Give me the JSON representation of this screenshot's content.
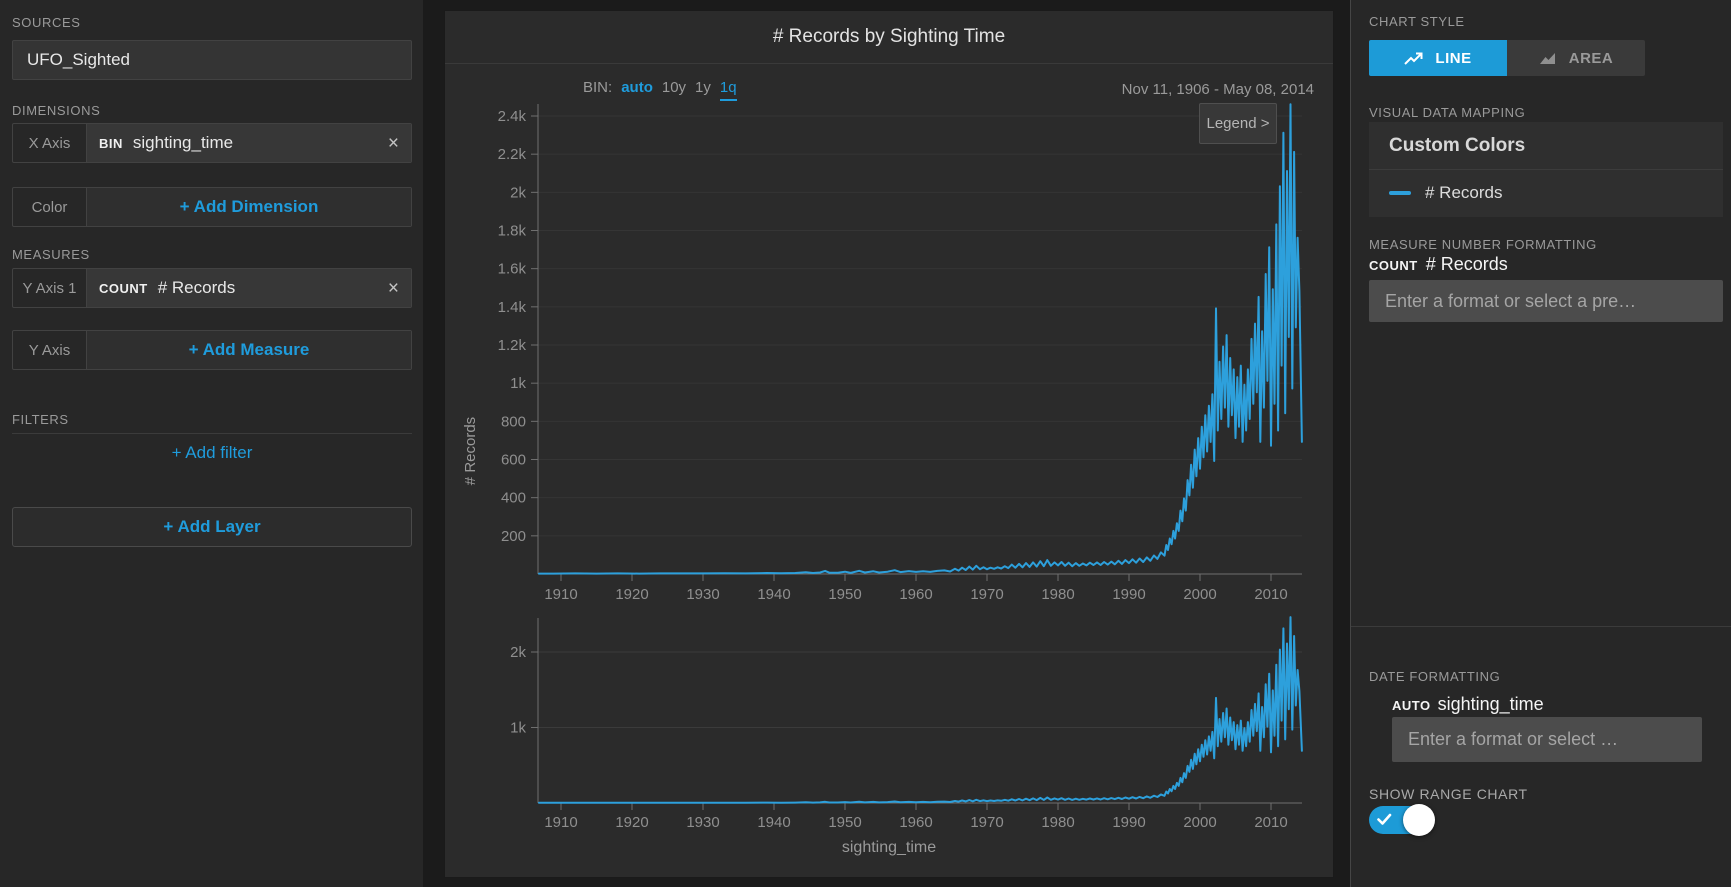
{
  "app": {
    "accent": "#1d9bd7",
    "link_blue": "#1f9cdc",
    "close_glyph": "×"
  },
  "sidebar": {
    "sources_label": "SOURCES",
    "source_name": "UFO_Sighted",
    "dimensions_label": "DIMENSIONS",
    "x_axis": {
      "slot": "X Axis",
      "fn": "BIN",
      "field": "sighting_time"
    },
    "color_slot": {
      "slot": "Color",
      "action": "+ Add Dimension"
    },
    "measures_label": "MEASURES",
    "y_axis1": {
      "slot": "Y Axis 1",
      "fn": "COUNT",
      "field": "# Records"
    },
    "y_axis_add": {
      "slot": "Y Axis",
      "action": "+ Add Measure"
    },
    "filters_label": "FILTERS",
    "add_filter": "+ Add filter",
    "add_layer": "+ Add Layer"
  },
  "chart": {
    "title": "# Records by Sighting Time",
    "bin_label": "BIN:",
    "bin_options": [
      "auto",
      "10y",
      "1y",
      "1q"
    ],
    "bin_active": "1q",
    "date_range": "Nov 11, 1906 - May 08, 2014",
    "legend_button": "Legend >",
    "ylabel": "# Records",
    "xlabel": "sighting_time"
  },
  "chart_data": {
    "type": "line",
    "title": "# Records by Sighting Time",
    "xlabel": "sighting_time",
    "ylabel": "# Records",
    "bin": "1q",
    "date_span": "Nov 11, 1906 - May 08, 2014",
    "xlim": [
      1906.87,
      2014.35
    ],
    "ylim_main": [
      0,
      2500
    ],
    "ylim_range": [
      0,
      2500
    ],
    "grid": true,
    "legend_position": "top-right",
    "y_ticks_main": [
      [
        200,
        "200"
      ],
      [
        400,
        "400"
      ],
      [
        600,
        "600"
      ],
      [
        800,
        "800"
      ],
      [
        1000,
        "1k"
      ],
      [
        1200,
        "1.2k"
      ],
      [
        1400,
        "1.4k"
      ],
      [
        1600,
        "1.6k"
      ],
      [
        1800,
        "1.8k"
      ],
      [
        2000,
        "2k"
      ],
      [
        2200,
        "2.2k"
      ],
      [
        2400,
        "2.4k"
      ]
    ],
    "y_ticks_range": [
      [
        1000,
        "1k"
      ],
      [
        2000,
        "2k"
      ]
    ],
    "x_ticks": [
      [
        1910,
        "1910"
      ],
      [
        1920,
        "1920"
      ],
      [
        1930,
        "1930"
      ],
      [
        1940,
        "1940"
      ],
      [
        1950,
        "1950"
      ],
      [
        1960,
        "1960"
      ],
      [
        1970,
        "1970"
      ],
      [
        1980,
        "1980"
      ],
      [
        1990,
        "1990"
      ],
      [
        2000,
        "2000"
      ],
      [
        2010,
        "2010"
      ]
    ],
    "series": [
      {
        "name": "# Records",
        "color": "#2da0dc",
        "points": [
          [
            1906.9,
            2
          ],
          [
            1909,
            2
          ],
          [
            1912,
            3
          ],
          [
            1915,
            2
          ],
          [
            1918,
            3
          ],
          [
            1921,
            2
          ],
          [
            1924,
            3
          ],
          [
            1927,
            3
          ],
          [
            1930,
            3
          ],
          [
            1933,
            4
          ],
          [
            1936,
            3
          ],
          [
            1939,
            5
          ],
          [
            1941,
            4
          ],
          [
            1943,
            5
          ],
          [
            1944.5,
            9
          ],
          [
            1945.5,
            5
          ],
          [
            1946.5,
            8
          ],
          [
            1947.2,
            16
          ],
          [
            1947.8,
            7
          ],
          [
            1949,
            7
          ],
          [
            1950,
            12
          ],
          [
            1950.8,
            6
          ],
          [
            1952,
            17
          ],
          [
            1952.8,
            8
          ],
          [
            1954,
            14
          ],
          [
            1954.8,
            8
          ],
          [
            1956,
            12
          ],
          [
            1957,
            20
          ],
          [
            1957.8,
            10
          ],
          [
            1959,
            15
          ],
          [
            1960,
            11
          ],
          [
            1961,
            14
          ],
          [
            1962,
            11
          ],
          [
            1963,
            16
          ],
          [
            1964,
            19
          ],
          [
            1964.8,
            13
          ],
          [
            1965.5,
            27
          ],
          [
            1966,
            18
          ],
          [
            1966.5,
            33
          ],
          [
            1967,
            21
          ],
          [
            1967.5,
            39
          ],
          [
            1968,
            23
          ],
          [
            1968.5,
            43
          ],
          [
            1969,
            25
          ],
          [
            1969.5,
            35
          ],
          [
            1970,
            25
          ],
          [
            1970.5,
            33
          ],
          [
            1971,
            27
          ],
          [
            1971.5,
            35
          ],
          [
            1972,
            29
          ],
          [
            1972.5,
            41
          ],
          [
            1973,
            31
          ],
          [
            1973.5,
            49
          ],
          [
            1974,
            33
          ],
          [
            1974.5,
            53
          ],
          [
            1975,
            35
          ],
          [
            1975.5,
            57
          ],
          [
            1976,
            37
          ],
          [
            1976.5,
            61
          ],
          [
            1977,
            39
          ],
          [
            1977.5,
            67
          ],
          [
            1978,
            41
          ],
          [
            1978.5,
            73
          ],
          [
            1979,
            43
          ],
          [
            1979.5,
            61
          ],
          [
            1980,
            45
          ],
          [
            1980.5,
            63
          ],
          [
            1981,
            43
          ],
          [
            1981.5,
            59
          ],
          [
            1982,
            41
          ],
          [
            1982.5,
            57
          ],
          [
            1983,
            43
          ],
          [
            1983.5,
            55
          ],
          [
            1984,
            45
          ],
          [
            1984.5,
            59
          ],
          [
            1985,
            47
          ],
          [
            1985.5,
            61
          ],
          [
            1986,
            47
          ],
          [
            1986.5,
            63
          ],
          [
            1987,
            49
          ],
          [
            1987.5,
            65
          ],
          [
            1988,
            51
          ],
          [
            1988.5,
            69
          ],
          [
            1989,
            53
          ],
          [
            1989.5,
            73
          ],
          [
            1990,
            57
          ],
          [
            1990.5,
            77
          ],
          [
            1991,
            59
          ],
          [
            1991.5,
            81
          ],
          [
            1992,
            63
          ],
          [
            1992.5,
            87
          ],
          [
            1993,
            69
          ],
          [
            1993.5,
            97
          ],
          [
            1994,
            79
          ],
          [
            1994.5,
            113
          ],
          [
            1995,
            96
          ],
          [
            1995.25,
            152
          ],
          [
            1995.5,
            126
          ],
          [
            1995.75,
            186
          ],
          [
            1996,
            156
          ],
          [
            1996.25,
            226
          ],
          [
            1996.5,
            186
          ],
          [
            1996.75,
            266
          ],
          [
            1997,
            226
          ],
          [
            1997.25,
            332
          ],
          [
            1997.5,
            276
          ],
          [
            1997.75,
            396
          ],
          [
            1998,
            332
          ],
          [
            1998.25,
            492
          ],
          [
            1998.5,
            412
          ],
          [
            1998.75,
            572
          ],
          [
            1999,
            452
          ],
          [
            1999.25,
            652
          ],
          [
            1999.5,
            512
          ],
          [
            1999.75,
            712
          ],
          [
            2000,
            552
          ],
          [
            2000.25,
            772
          ],
          [
            2000.5,
            612
          ],
          [
            2000.75,
            832
          ],
          [
            2001,
            642
          ],
          [
            2001.25,
            882
          ],
          [
            2001.5,
            692
          ],
          [
            2001.75,
            942
          ],
          [
            2002,
            592
          ],
          [
            2002.25,
            1392
          ],
          [
            2002.5,
            752
          ],
          [
            2002.75,
            1112
          ],
          [
            2003,
            812
          ],
          [
            2003.25,
            1192
          ],
          [
            2003.5,
            872
          ],
          [
            2003.75,
            1252
          ],
          [
            2004,
            772
          ],
          [
            2004.25,
            1132
          ],
          [
            2004.5,
            832
          ],
          [
            2004.75,
            1072
          ],
          [
            2005,
            712
          ],
          [
            2005.25,
            1032
          ],
          [
            2005.5,
            772
          ],
          [
            2005.75,
            1092
          ],
          [
            2006,
            692
          ],
          [
            2006.25,
            992
          ],
          [
            2006.5,
            752
          ],
          [
            2006.75,
            1072
          ],
          [
            2007,
            812
          ],
          [
            2007.25,
            1232
          ],
          [
            2007.5,
            892
          ],
          [
            2007.75,
            1312
          ],
          [
            2008,
            952
          ],
          [
            2008.25,
            1452
          ],
          [
            2008.5,
            692
          ],
          [
            2008.75,
            1272
          ],
          [
            2009,
            872
          ],
          [
            2009.25,
            1572
          ],
          [
            2009.5,
            1012
          ],
          [
            2009.75,
            1712
          ],
          [
            2010,
            672
          ],
          [
            2010.25,
            1492
          ],
          [
            2010.5,
            892
          ],
          [
            2010.75,
            1832
          ],
          [
            2011,
            752
          ],
          [
            2011.25,
            2032
          ],
          [
            2011.5,
            1092
          ],
          [
            2011.75,
            2312
          ],
          [
            2012,
            842
          ],
          [
            2012.25,
            2112
          ],
          [
            2012.5,
            1242
          ],
          [
            2012.75,
            2462
          ],
          [
            2013,
            972
          ],
          [
            2013.25,
            2212
          ],
          [
            2013.5,
            1292
          ],
          [
            2013.75,
            1762
          ],
          [
            2014,
            1482
          ],
          [
            2014.35,
            692
          ]
        ]
      }
    ]
  },
  "panel": {
    "chart_style_label": "CHART STYLE",
    "line_button": "LINE",
    "area_button": "AREA",
    "vdm_label": "VISUAL DATA MAPPING",
    "custom_colors": "Custom Colors",
    "series_legend": "# Records",
    "mnf_label": "MEASURE NUMBER FORMATTING",
    "count_prefix": "COUNT",
    "count_field": "# Records",
    "measure_placeholder": "Enter a format or select a pre…",
    "date_fmt_label": "DATE FORMATTING",
    "auto_prefix": "AUTO",
    "auto_field": "sighting_time",
    "date_placeholder": "Enter a format or select …",
    "range_chart_label": "SHOW RANGE CHART"
  }
}
